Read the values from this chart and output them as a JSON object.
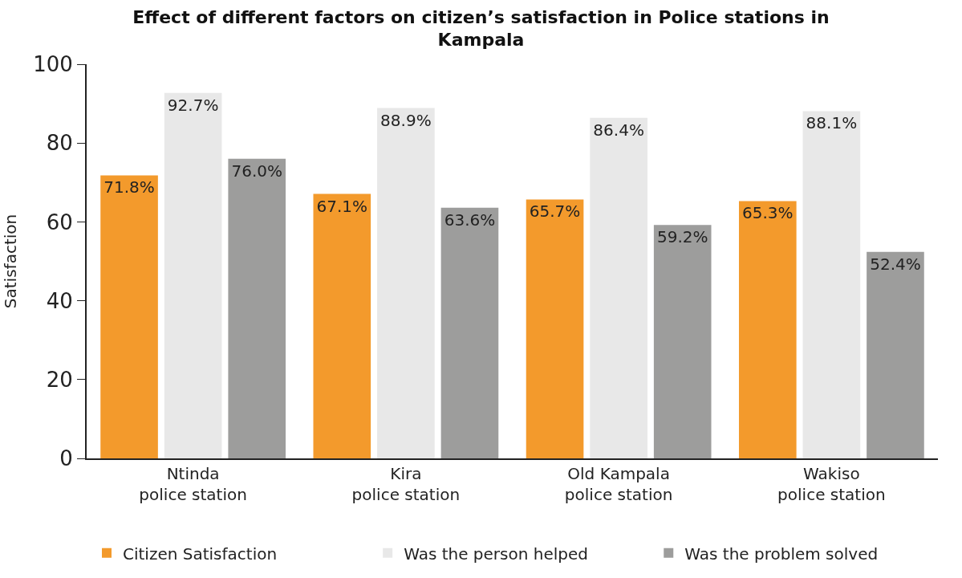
{
  "chart_data": {
    "type": "bar",
    "title": "Effect of different factors on citizen’s satisfaction in Police stations in\nKampala",
    "ylabel": "Satisfaction",
    "categories": [
      "Ntinda\npolice station",
      "Kira\npolice station",
      "Old Kampala\npolice station",
      "Wakiso\npolice station"
    ],
    "series": [
      {
        "name": "Citizen Satisfaction",
        "color": "#f39a2c",
        "values": [
          71.8,
          67.1,
          65.7,
          65.3
        ],
        "value_labels": [
          "71.8%",
          "67.1%",
          "65.7%",
          "65.3%"
        ]
      },
      {
        "name": "Was the person helped",
        "color": "#e8e8e8",
        "values": [
          92.7,
          88.9,
          86.4,
          88.1
        ],
        "value_labels": [
          "92.7%",
          "88.9%",
          "86.4%",
          "88.1%"
        ]
      },
      {
        "name": "Was the problem solved",
        "color": "#9d9d9c",
        "values": [
          76.0,
          63.6,
          59.2,
          52.4
        ],
        "value_labels": [
          "76.0%",
          "63.6%",
          "59.2%",
          "52.4%"
        ]
      }
    ],
    "ylim": [
      0,
      100
    ],
    "yticks": [
      0,
      20,
      40,
      60,
      80,
      100
    ],
    "legend": "bottom"
  }
}
